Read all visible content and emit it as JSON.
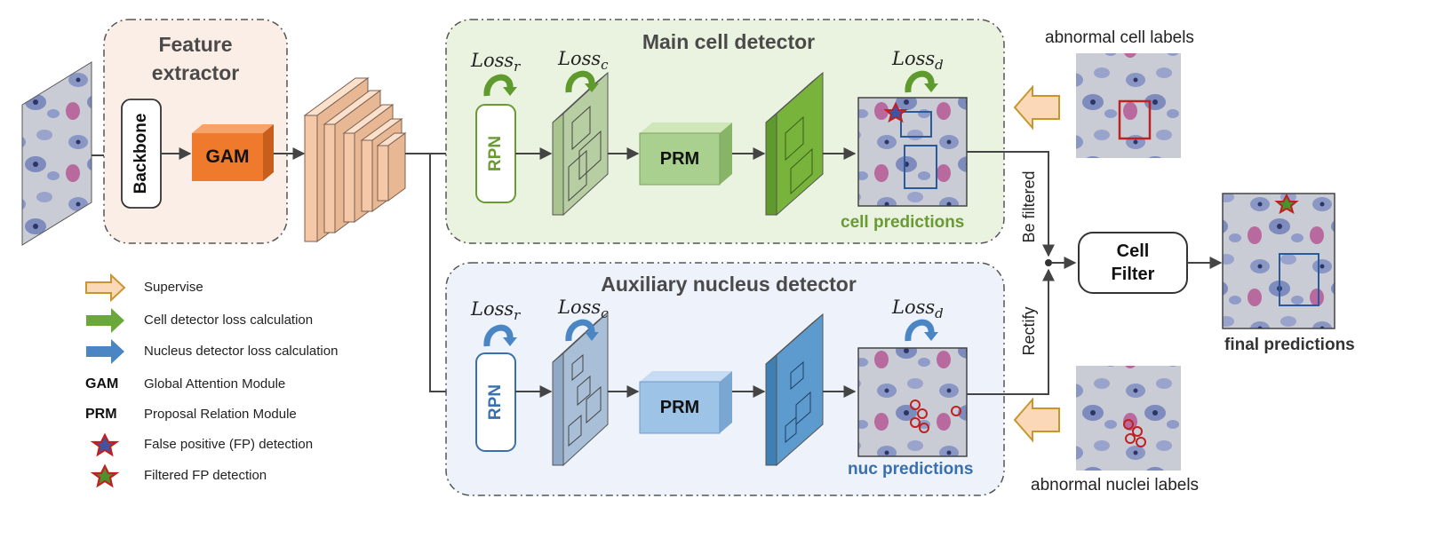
{
  "panels": {
    "feature_extractor": {
      "title": "Feature\nextractor",
      "backbone": "Backbone",
      "gam": "GAM"
    },
    "main_detector": {
      "title": "Main cell detector",
      "rpn": "RPN",
      "prm": "PRM",
      "loss_r": {
        "base": "Loss",
        "sub": "r"
      },
      "loss_c": {
        "base": "Loss",
        "sub": "c"
      },
      "loss_d": {
        "base": "Loss",
        "sub": "d"
      },
      "predictions": "cell predictions"
    },
    "aux_detector": {
      "title": "Auxiliary nucleus detector",
      "rpn": "RPN",
      "prm": "PRM",
      "loss_r": {
        "base": "Loss",
        "sub": "r"
      },
      "loss_c": {
        "base": "Loss",
        "sub": "c"
      },
      "loss_d": {
        "base": "Loss",
        "sub": "d"
      },
      "predictions": "nuc predictions"
    }
  },
  "labels": {
    "abnormal_cell": "abnormal cell labels",
    "abnormal_nuclei": "abnormal nuclei labels",
    "be_filtered": "Be filtered",
    "rectify": "Rectify",
    "cell_filter": "Cell\nFilter",
    "final_predictions": "final predictions"
  },
  "legend": [
    {
      "key": "",
      "icon": "supervise-arrow-icon",
      "text": "Supervise"
    },
    {
      "key": "",
      "icon": "green-arrow-icon",
      "text": "Cell detector  loss calculation"
    },
    {
      "key": "",
      "icon": "blue-arrow-icon",
      "text": "Nucleus detector  loss calculation"
    },
    {
      "key": "GAM",
      "icon": "",
      "text": "Global Attention Module"
    },
    {
      "key": "PRM",
      "icon": "",
      "text": "Proposal Relation Module"
    },
    {
      "key": "",
      "icon": "false-positive-star-icon",
      "text": "False positive (FP) detection"
    },
    {
      "key": "",
      "icon": "filtered-fp-star-icon",
      "text": "Filtered FP detection"
    }
  ],
  "colors": {
    "feature_panel_bg": "#fbeee6",
    "main_panel_bg": "#eaf3df",
    "aux_panel_bg": "#eef3fb",
    "gam": "#ef7a2c",
    "green_dark": "#6a9a32",
    "green_light": "#a9d08e",
    "blue_dark": "#3a6fae",
    "blue_light": "#9dc3e6",
    "peach": "#f5c9a8"
  }
}
